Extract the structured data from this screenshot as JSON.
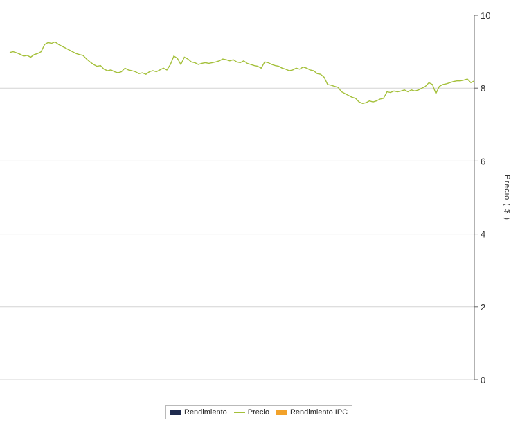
{
  "chart_data": {
    "type": "line",
    "ylabel": "Precio  ( $ )",
    "ylim": [
      0,
      10
    ],
    "y_ticks": [
      "0",
      "2",
      "4",
      "6",
      "8",
      "10"
    ],
    "grid": true,
    "y_axis_position": "right",
    "legend_position": "bottom",
    "legend": [
      {
        "name": "Rendimiento",
        "color": "#1f2b4e",
        "marker": "box"
      },
      {
        "name": "Precio",
        "color": "#a4c03a",
        "marker": "line"
      },
      {
        "name": "Rendimiento IPC",
        "color": "#f2a22a",
        "marker": "box"
      }
    ],
    "series": [
      {
        "name": "Precio",
        "color": "#a4c03a",
        "values": [
          8.98,
          9.0,
          8.97,
          8.93,
          8.88,
          8.9,
          8.85,
          8.92,
          8.95,
          9.0,
          9.2,
          9.25,
          9.23,
          9.27,
          9.2,
          9.15,
          9.1,
          9.05,
          9.0,
          8.95,
          8.92,
          8.9,
          8.8,
          8.72,
          8.65,
          8.6,
          8.62,
          8.52,
          8.48,
          8.5,
          8.45,
          8.42,
          8.45,
          8.55,
          8.5,
          8.48,
          8.45,
          8.4,
          8.42,
          8.38,
          8.45,
          8.48,
          8.45,
          8.5,
          8.55,
          8.5,
          8.65,
          8.88,
          8.82,
          8.65,
          8.85,
          8.8,
          8.72,
          8.7,
          8.65,
          8.68,
          8.7,
          8.68,
          8.7,
          8.72,
          8.75,
          8.8,
          8.78,
          8.75,
          8.78,
          8.72,
          8.7,
          8.75,
          8.68,
          8.65,
          8.62,
          8.6,
          8.55,
          8.72,
          8.7,
          8.65,
          8.62,
          8.6,
          8.55,
          8.52,
          8.48,
          8.5,
          8.55,
          8.52,
          8.58,
          8.55,
          8.5,
          8.48,
          8.4,
          8.38,
          8.3,
          8.1,
          8.08,
          8.05,
          8.02,
          7.9,
          7.85,
          7.8,
          7.75,
          7.72,
          7.62,
          7.58,
          7.6,
          7.65,
          7.62,
          7.65,
          7.7,
          7.72,
          7.9,
          7.88,
          7.92,
          7.9,
          7.92,
          7.95,
          7.9,
          7.95,
          7.92,
          7.95,
          8.0,
          8.05,
          8.15,
          8.1,
          7.85,
          8.05,
          8.1,
          8.12,
          8.15,
          8.18,
          8.2,
          8.2,
          8.22,
          8.25,
          8.15,
          8.2
        ]
      }
    ]
  }
}
